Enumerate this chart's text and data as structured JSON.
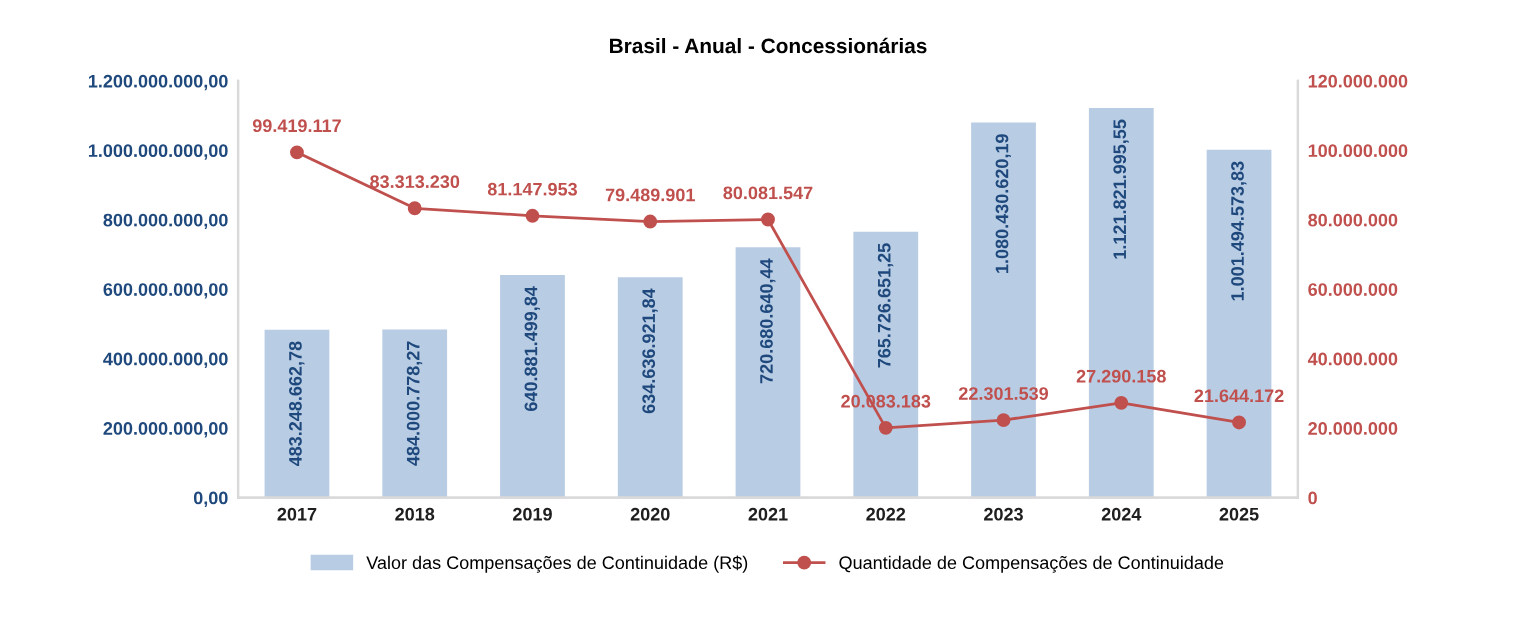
{
  "chart_data": {
    "type": "bar",
    "title": "Brasil - Anual - Concessionárias",
    "categories": [
      "2017",
      "2018",
      "2019",
      "2020",
      "2021",
      "2022",
      "2023",
      "2024",
      "2025"
    ],
    "series": [
      {
        "name": "Valor das Compensações de Continuidade (R$)",
        "color": "#b8cce4",
        "values": [
          483248662.78,
          484000778.27,
          640881499.84,
          634636921.84,
          720680640.44,
          765726651.25,
          1080430620.19,
          1121821995.55,
          1001494573.83
        ],
        "value_labels": [
          "483.248.662,78",
          "484.000.778,27",
          "640.881.499,84",
          "634.636.921,84",
          "720.680.640,44",
          "765.726.651,25",
          "1.080.430.620,19",
          "1.121.821.995,55",
          "1.001.494.573,83"
        ]
      },
      {
        "name": "Quantidade de Compensações de Continuidade",
        "type": "line",
        "axis": "y2",
        "color": "#c0504d",
        "marker": "circle",
        "values": [
          99419117,
          83313230,
          81147953,
          79489901,
          80081547,
          20083183,
          22301539,
          27290158,
          21644172
        ],
        "value_labels": [
          "99.419.117",
          "83.313.230",
          "81.147.953",
          "79.489.901",
          "80.081.547",
          "20.083.183",
          "22.301.539",
          "27.290.158",
          "21.644.172"
        ]
      }
    ],
    "ylim": [
      0,
      1200000000
    ],
    "yticks": [
      {
        "value": 0,
        "label": "0,00"
      },
      {
        "value": 200000000,
        "label": "200.000.000,00"
      },
      {
        "value": 400000000,
        "label": "400.000.000,00"
      },
      {
        "value": 600000000,
        "label": "600.000.000,00"
      },
      {
        "value": 800000000,
        "label": "800.000.000,00"
      },
      {
        "value": 1000000000,
        "label": "1.000.000.000,00"
      },
      {
        "value": 1200000000,
        "label": "1.200.000.000,00"
      }
    ],
    "y2lim": [
      0,
      120000000
    ],
    "y2ticks": [
      0,
      {
        "value": 20000000,
        "label": "20.000.000"
      },
      {
        "value": 40000000,
        "label": "40.000.000"
      },
      {
        "value": 60000000,
        "label": "60.000.000"
      },
      {
        "value": 80000000,
        "label": "80.000.000"
      },
      {
        "value": 100000000,
        "label": "100.000.000"
      },
      {
        "value": 120000000,
        "label": "120.000.000"
      }
    ],
    "grid": false,
    "legend": "bottom"
  }
}
